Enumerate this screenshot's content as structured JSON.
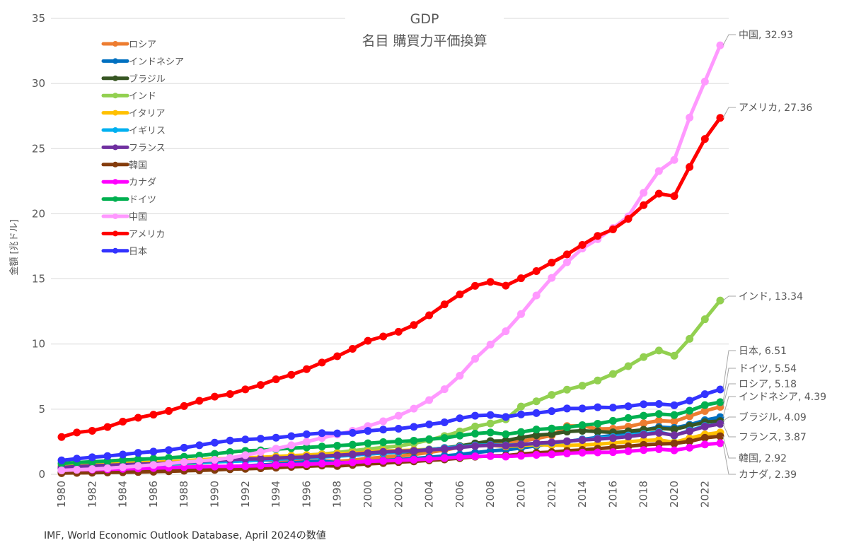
{
  "chart_data": {
    "type": "line",
    "title": "GDP",
    "subtitle": "名目 購買力平価換算",
    "xlabel": "",
    "ylabel": "金額 [兆ドル]",
    "ylim": [
      0,
      35
    ],
    "yticks": [
      "0",
      "5",
      "10",
      "15",
      "20",
      "25",
      "30",
      "35"
    ],
    "xlim": [
      1980,
      2023
    ],
    "xticks": [
      "1980",
      "1982",
      "1984",
      "1986",
      "1988",
      "1990",
      "1992",
      "1994",
      "1996",
      "1998",
      "2000",
      "2002",
      "2004",
      "2006",
      "2008",
      "2010",
      "2012",
      "2014",
      "2016",
      "2018",
      "2020",
      "2022"
    ],
    "grid": "horizontal",
    "legend_position": "top-left",
    "source": "IMF, World Economic Outlook Database, April 2024の数値",
    "x": [
      1980,
      1981,
      1982,
      1983,
      1984,
      1985,
      1986,
      1987,
      1988,
      1989,
      1990,
      1991,
      1992,
      1993,
      1994,
      1995,
      1996,
      1997,
      1998,
      1999,
      2000,
      2001,
      2002,
      2003,
      2004,
      2005,
      2006,
      2007,
      2008,
      2009,
      2010,
      2011,
      2012,
      2013,
      2014,
      2015,
      2016,
      2017,
      2018,
      2019,
      2020,
      2021,
      2022,
      2023
    ],
    "series": [
      {
        "name": "ロシア",
        "color": "#ED7D31",
        "end_label": "ロシア, 5.18",
        "values": [
          null,
          null,
          null,
          null,
          null,
          null,
          null,
          null,
          null,
          null,
          null,
          null,
          1.2,
          1.13,
          1.03,
          1.01,
          0.99,
          1.03,
          0.99,
          1.08,
          1.22,
          1.31,
          1.39,
          1.52,
          1.68,
          1.86,
          2.08,
          2.34,
          2.53,
          2.38,
          2.52,
          2.75,
          2.98,
          3.7,
          3.72,
          3.48,
          3.5,
          3.66,
          3.92,
          4.12,
          4.06,
          4.46,
          4.86,
          5.18
        ]
      },
      {
        "name": "インドネシア",
        "color": "#0070C0",
        "end_label": "インドネシア, 4.39",
        "values": [
          0.19,
          0.22,
          0.25,
          0.27,
          0.3,
          0.32,
          0.35,
          0.38,
          0.42,
          0.47,
          0.53,
          0.59,
          0.65,
          0.71,
          0.78,
          0.87,
          0.95,
          1.01,
          0.89,
          0.91,
          0.99,
          1.06,
          1.13,
          1.21,
          1.3,
          1.41,
          1.52,
          1.66,
          1.79,
          1.88,
          2.02,
          2.19,
          2.36,
          2.52,
          2.68,
          2.83,
          2.99,
          3.18,
          3.4,
          3.62,
          3.56,
          3.8,
          4.15,
          4.39
        ]
      },
      {
        "name": "ブラジル",
        "color": "#375623",
        "end_label": "ブラジル, 4.09",
        "values": [
          0.62,
          0.64,
          0.68,
          0.68,
          0.74,
          0.81,
          0.88,
          0.93,
          0.96,
          1.02,
          1.01,
          1.05,
          1.07,
          1.14,
          1.22,
          1.3,
          1.35,
          1.42,
          1.44,
          1.47,
          1.56,
          1.63,
          1.7,
          1.76,
          1.9,
          2.02,
          2.17,
          2.37,
          2.55,
          2.57,
          2.82,
          3.0,
          3.09,
          3.28,
          3.34,
          3.28,
          3.22,
          3.3,
          3.42,
          3.53,
          3.45,
          3.72,
          4.0,
          4.09
        ]
      },
      {
        "name": "インド",
        "color": "#92D050",
        "end_label": "インド, 13.34",
        "values": [
          0.38,
          0.44,
          0.48,
          0.53,
          0.57,
          0.62,
          0.66,
          0.71,
          0.79,
          0.87,
          0.95,
          0.99,
          1.06,
          1.13,
          1.23,
          1.35,
          1.47,
          1.55,
          1.66,
          1.82,
          1.93,
          2.06,
          2.17,
          2.37,
          2.63,
          2.94,
          3.29,
          3.67,
          3.9,
          4.22,
          5.2,
          5.6,
          6.1,
          6.5,
          6.8,
          7.2,
          7.7,
          8.3,
          9.0,
          9.5,
          9.1,
          10.4,
          11.9,
          13.34
        ]
      },
      {
        "name": "イタリア",
        "color": "#FFC000",
        "values": [
          0.62,
          0.69,
          0.74,
          0.78,
          0.83,
          0.88,
          0.92,
          0.97,
          1.04,
          1.11,
          1.18,
          1.23,
          1.27,
          1.3,
          1.36,
          1.43,
          1.48,
          1.53,
          1.58,
          1.62,
          1.71,
          1.79,
          1.82,
          1.86,
          1.92,
          1.99,
          2.1,
          2.19,
          2.23,
          2.14,
          2.21,
          2.28,
          2.24,
          2.22,
          2.25,
          2.31,
          2.4,
          2.5,
          2.59,
          2.65,
          2.45,
          2.76,
          3.06,
          3.21
        ]
      },
      {
        "name": "イギリス",
        "color": "#00B0F0",
        "values": [
          0.48,
          0.52,
          0.56,
          0.6,
          0.64,
          0.69,
          0.72,
          0.78,
          0.85,
          0.91,
          0.96,
          0.99,
          1.03,
          1.08,
          1.15,
          1.21,
          1.27,
          1.33,
          1.39,
          1.46,
          1.56,
          1.64,
          1.71,
          1.8,
          1.9,
          2.01,
          2.11,
          2.21,
          2.26,
          2.22,
          2.29,
          2.36,
          2.43,
          2.53,
          2.65,
          2.76,
          2.85,
          2.98,
          3.1,
          3.24,
          2.98,
          3.36,
          3.7,
          3.87
        ]
      },
      {
        "name": "フランス",
        "color": "#7030A0",
        "end_label": "フランス, 3.87",
        "values": [
          0.53,
          0.59,
          0.65,
          0.69,
          0.73,
          0.77,
          0.81,
          0.85,
          0.92,
          1.0,
          1.07,
          1.12,
          1.17,
          1.19,
          1.24,
          1.29,
          1.33,
          1.39,
          1.46,
          1.53,
          1.63,
          1.72,
          1.77,
          1.8,
          1.87,
          1.95,
          2.06,
          2.17,
          2.23,
          2.2,
          2.28,
          2.39,
          2.45,
          2.54,
          2.63,
          2.71,
          2.78,
          2.9,
          3.04,
          3.18,
          3.0,
          3.31,
          3.66,
          3.87
        ]
      },
      {
        "name": "韓国",
        "color": "#843C0C",
        "end_label": "韓国, 2.92",
        "values": [
          0.09,
          0.11,
          0.12,
          0.14,
          0.16,
          0.18,
          0.2,
          0.23,
          0.27,
          0.3,
          0.34,
          0.39,
          0.42,
          0.46,
          0.51,
          0.57,
          0.62,
          0.67,
          0.64,
          0.72,
          0.8,
          0.86,
          0.94,
          0.99,
          1.07,
          1.14,
          1.24,
          1.35,
          1.41,
          1.43,
          1.55,
          1.65,
          1.71,
          1.8,
          1.87,
          1.96,
          2.06,
          2.15,
          2.26,
          2.33,
          2.36,
          2.53,
          2.8,
          2.92
        ]
      },
      {
        "name": "カナダ",
        "color": "#FF00FF",
        "end_label": "カナダ, 2.39",
        "values": [
          0.31,
          0.35,
          0.36,
          0.38,
          0.42,
          0.45,
          0.48,
          0.51,
          0.55,
          0.58,
          0.6,
          0.61,
          0.63,
          0.67,
          0.71,
          0.75,
          0.78,
          0.82,
          0.86,
          0.92,
          0.99,
          1.03,
          1.07,
          1.12,
          1.17,
          1.25,
          1.32,
          1.38,
          1.4,
          1.36,
          1.42,
          1.49,
          1.53,
          1.6,
          1.66,
          1.68,
          1.7,
          1.77,
          1.86,
          1.93,
          1.84,
          2.04,
          2.29,
          2.39
        ]
      },
      {
        "name": "ドイツ",
        "color": "#00B050",
        "end_label": "ドイツ, 5.54",
        "values": [
          0.83,
          0.91,
          0.96,
          1.02,
          1.09,
          1.15,
          1.2,
          1.26,
          1.34,
          1.44,
          1.57,
          1.71,
          1.8,
          1.84,
          1.93,
          2.0,
          2.06,
          2.13,
          2.2,
          2.27,
          2.38,
          2.47,
          2.52,
          2.58,
          2.69,
          2.79,
          2.97,
          3.12,
          3.21,
          3.07,
          3.24,
          3.44,
          3.51,
          3.6,
          3.77,
          3.88,
          4.1,
          4.32,
          4.5,
          4.63,
          4.55,
          4.88,
          5.31,
          5.54
        ]
      },
      {
        "name": "中国",
        "color": "#FF99FF",
        "end_label": "中国, 32.93",
        "values": [
          0.3,
          0.35,
          0.4,
          0.46,
          0.55,
          0.64,
          0.72,
          0.83,
          0.95,
          1.03,
          1.11,
          1.26,
          1.47,
          1.71,
          1.97,
          2.23,
          2.5,
          2.79,
          3.05,
          3.34,
          3.7,
          4.07,
          4.5,
          5.04,
          5.7,
          6.53,
          7.57,
          8.87,
          9.96,
          10.98,
          12.3,
          13.73,
          15.08,
          16.28,
          17.33,
          18.05,
          18.9,
          19.8,
          21.61,
          23.28,
          24.13,
          27.38,
          30.15,
          32.93
        ]
      },
      {
        "name": "アメリカ",
        "color": "#FF0000",
        "end_label": "アメリカ, 27.36",
        "values": [
          2.86,
          3.21,
          3.34,
          3.63,
          4.04,
          4.34,
          4.58,
          4.86,
          5.24,
          5.64,
          5.96,
          6.16,
          6.52,
          6.86,
          7.29,
          7.64,
          8.07,
          8.58,
          9.06,
          9.63,
          10.25,
          10.58,
          10.94,
          11.46,
          12.21,
          13.04,
          13.81,
          14.47,
          14.77,
          14.48,
          15.05,
          15.6,
          16.25,
          16.88,
          17.61,
          18.3,
          18.8,
          19.61,
          20.66,
          21.54,
          21.35,
          23.59,
          25.74,
          27.36
        ]
      },
      {
        "name": "日本",
        "color": "#3333FF",
        "end_label": "日本, 6.51",
        "values": [
          1.07,
          1.2,
          1.31,
          1.4,
          1.52,
          1.65,
          1.74,
          1.86,
          2.04,
          2.23,
          2.43,
          2.59,
          2.67,
          2.73,
          2.81,
          2.93,
          3.07,
          3.16,
          3.14,
          3.18,
          3.33,
          3.43,
          3.5,
          3.64,
          3.83,
          3.99,
          4.3,
          4.5,
          4.55,
          4.4,
          4.6,
          4.7,
          4.85,
          5.05,
          5.05,
          5.15,
          5.12,
          5.22,
          5.38,
          5.4,
          5.3,
          5.65,
          6.15,
          6.51
        ]
      }
    ]
  }
}
